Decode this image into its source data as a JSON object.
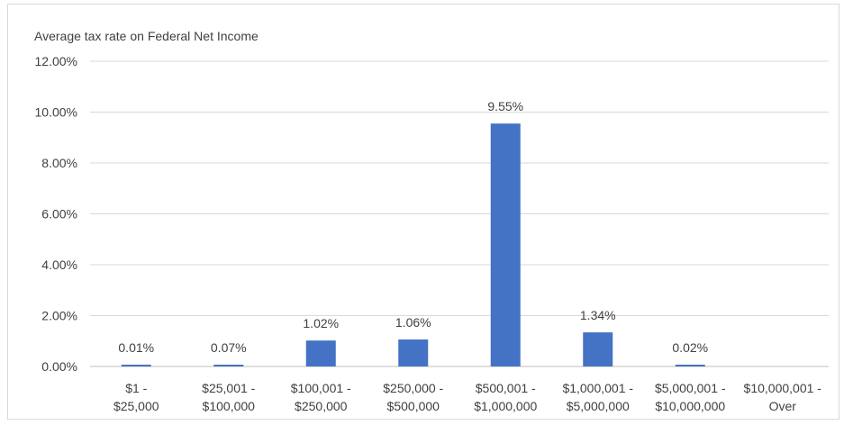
{
  "chart_data": {
    "type": "bar",
    "title": "",
    "ylabel": "Average tax rate on Federal Net Income",
    "xlabel": "",
    "ylim": [
      0,
      12
    ],
    "y_ticks": [
      0,
      2,
      4,
      6,
      8,
      10,
      12
    ],
    "y_tick_labels": [
      "0.00%",
      "2.00%",
      "4.00%",
      "6.00%",
      "8.00%",
      "10.00%",
      "12.00%"
    ],
    "grid": true,
    "legend": "none",
    "bar_color": "#4472c4",
    "categories": [
      [
        "$1 -",
        "$25,000"
      ],
      [
        "$25,001 -",
        "$100,000"
      ],
      [
        "$100,001 -",
        "$250,000"
      ],
      [
        "$250,000 -",
        "$500,000"
      ],
      [
        "$500,001 -",
        "$1,000,000"
      ],
      [
        "$1,000,001 -",
        "$5,000,000"
      ],
      [
        "$5,000,001 -",
        "$10,000,000"
      ],
      [
        "$10,000,001 -",
        "Over"
      ]
    ],
    "values": [
      0.01,
      0.07,
      1.02,
      1.06,
      9.55,
      1.34,
      0.02,
      0
    ],
    "data_labels": [
      "0.01%",
      "0.07%",
      "1.02%",
      "1.06%",
      "9.55%",
      "1.34%",
      "0.02%",
      ""
    ]
  }
}
